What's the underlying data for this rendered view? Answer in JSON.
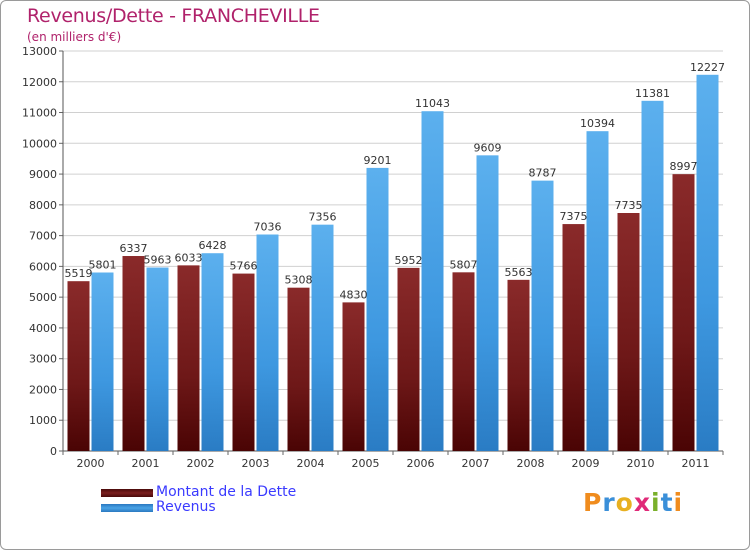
{
  "title": "Revenus/Dette - FRANCHEVILLE",
  "subtitle": "(en milliers d'€)",
  "colors": {
    "debt": "#7a1f1f",
    "revenue": "#4aa3e6",
    "title": "#b0226b",
    "legend_text": "#3a3aff",
    "logo_letters": [
      "#f08c1e",
      "#3a8fd9",
      "#e8b020",
      "#e02a78",
      "#7ab02a",
      "#3a8fd9"
    ]
  },
  "legend": {
    "debt_label": "Montant de la Dette",
    "revenue_label": "Revenus"
  },
  "logo": {
    "letters": [
      "P",
      "r",
      "o",
      "x",
      "i",
      "t",
      "i"
    ]
  },
  "chart_data": {
    "type": "bar",
    "title": "Revenus/Dette - FRANCHEVILLE",
    "ylabel": "(en milliers d'€)",
    "xlabel": "",
    "ylim": [
      0,
      13000
    ],
    "yticks": [
      0,
      1000,
      2000,
      3000,
      4000,
      5000,
      6000,
      7000,
      8000,
      9000,
      10000,
      11000,
      12000,
      13000
    ],
    "grid": true,
    "legend_position": "bottom-left",
    "categories": [
      "2000",
      "2001",
      "2002",
      "2003",
      "2004",
      "2005",
      "2006",
      "2007",
      "2008",
      "2009",
      "2010",
      "2011"
    ],
    "series": [
      {
        "name": "Montant de la Dette",
        "values": [
          5519,
          6337,
          6033,
          5766,
          5308,
          4830,
          5952,
          5807,
          5563,
          7375,
          7735,
          8997
        ]
      },
      {
        "name": "Revenus",
        "values": [
          5801,
          5963,
          6428,
          7036,
          7356,
          9201,
          11043,
          9609,
          8787,
          10394,
          11381,
          12227
        ]
      }
    ]
  }
}
